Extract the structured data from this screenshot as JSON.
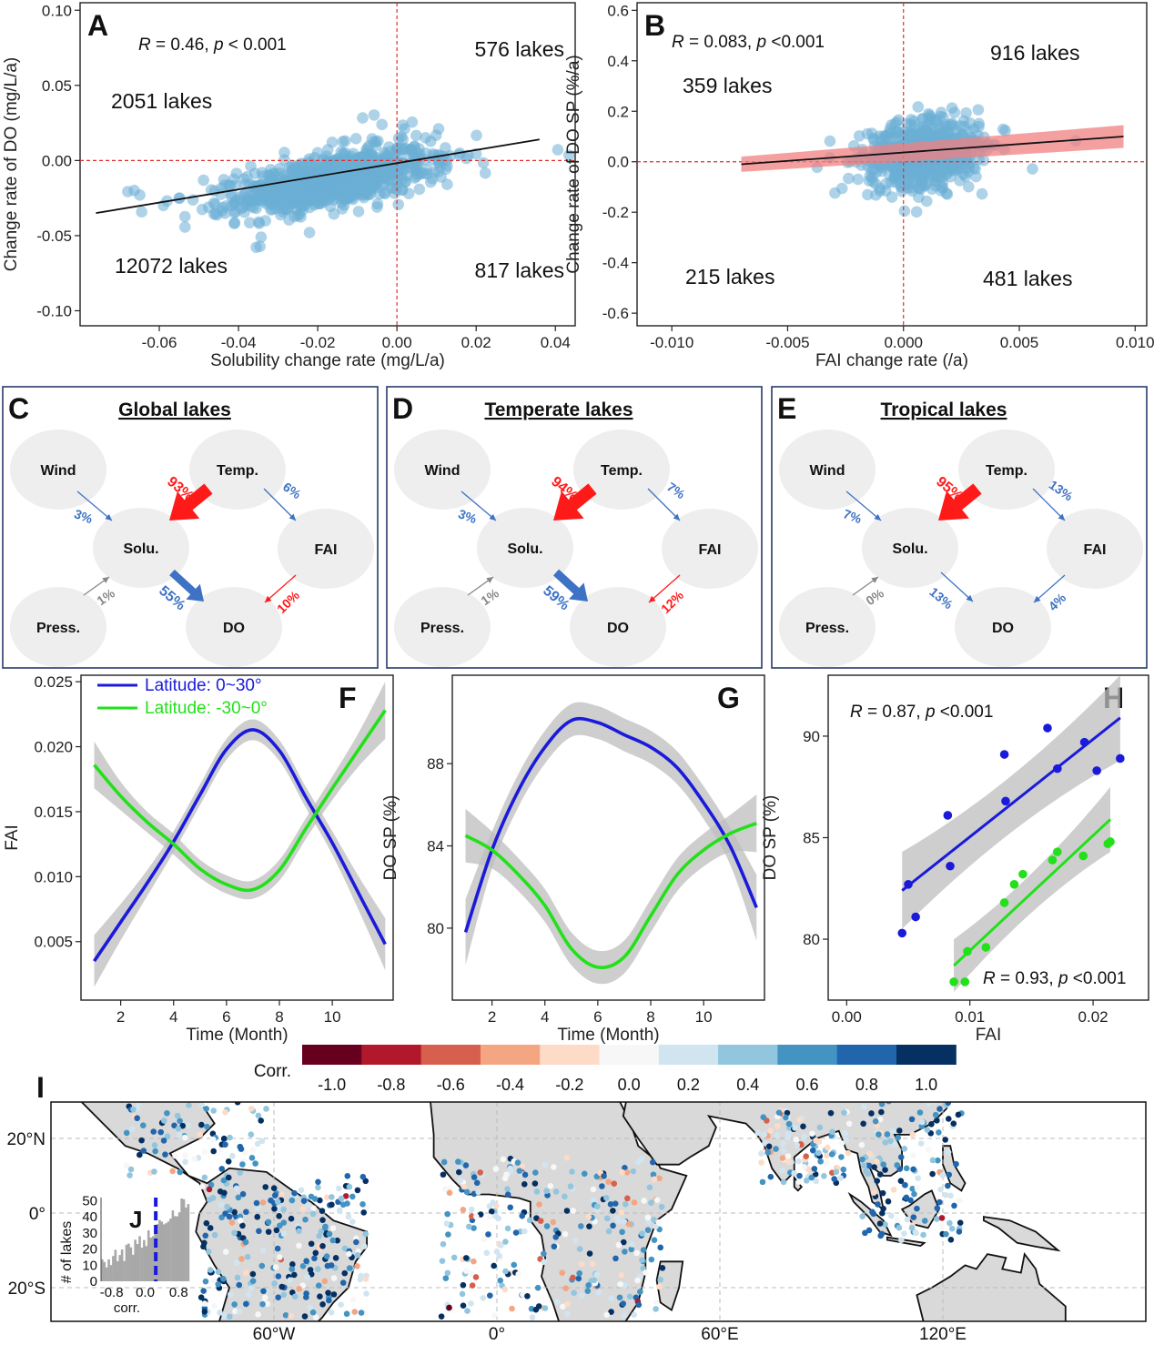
{
  "colors": {
    "scatter_blue": "#6baed6",
    "fit_red_band": "#f08080",
    "refline_red": "#e0302b",
    "north_blue": "#1a1adb",
    "south_green": "#22e01a",
    "ci_gray": "#bdbdbd",
    "arrow_red": "#ff1a1a",
    "arrow_blue": "#3e72c4",
    "arrow_gray": "#888888",
    "node_fill": "#eeeeee",
    "land_gray": "#d9d9d9"
  },
  "chart_data": [
    {
      "id": "A",
      "type": "scatter",
      "letter": "A",
      "xlabel": "Solubility change rate (mg/L/a)",
      "ylabel": "Change rate of DO (mg/L/a)",
      "xlim": [
        -0.08,
        0.045
      ],
      "ylim": [
        -0.11,
        0.105
      ],
      "xticks": [
        -0.06,
        -0.04,
        -0.02,
        0.0,
        0.02,
        0.04
      ],
      "xticklabels": [
        "-0.06",
        "-0.04",
        "-0.02",
        "0.00",
        "0.02",
        "0.04"
      ],
      "yticks": [
        -0.1,
        -0.05,
        0.0,
        0.05,
        0.1
      ],
      "yticklabels": [
        "-0.10",
        "-0.05",
        "0.00",
        "0.05",
        "0.10"
      ],
      "stat": {
        "R": "0.46",
        "p": "< 0.001"
      },
      "quadrant_labels": [
        "576 lakes",
        "2051 lakes",
        "12072 lakes",
        "817 lakes"
      ],
      "fit_line": {
        "x": [
          -0.076,
          0.036
        ],
        "y": [
          -0.035,
          0.014
        ]
      },
      "cloud": {
        "x_mean": -0.016,
        "x_sd": 0.012,
        "y_mean": -0.013,
        "y_sd": 0.015,
        "slope": 0.46,
        "n": 1000
      }
    },
    {
      "id": "B",
      "type": "scatter",
      "letter": "B",
      "xlabel": "FAI change rate (/a)",
      "ylabel": "Change rate of DO SP (%/a)",
      "xlim": [
        -0.0115,
        0.0105
      ],
      "ylim": [
        -0.65,
        0.63
      ],
      "xticks": [
        -0.01,
        -0.005,
        0.0,
        0.005,
        0.01
      ],
      "xticklabels": [
        "-0.010",
        "-0.005",
        "0.000",
        "0.005",
        "0.010"
      ],
      "yticks": [
        -0.6,
        -0.4,
        -0.2,
        0.0,
        0.2,
        0.4,
        0.6
      ],
      "yticklabels": [
        "-0.6",
        "-0.4",
        "-0.2",
        "0.0",
        "0.2",
        "0.4",
        "0.6"
      ],
      "stat": {
        "R": "0.083",
        "p": "<0.001"
      },
      "quadrant_labels": [
        "916 lakes",
        "359 lakes",
        "215 lakes",
        "481 lakes"
      ],
      "fit_line": {
        "x": [
          -0.007,
          0.0095
        ],
        "y": [
          -0.01,
          0.1
        ]
      },
      "cloud": {
        "x_mean": 0.0009,
        "x_sd": 0.0012,
        "y_mean": 0.03,
        "y_sd": 0.11,
        "slope": 0.083,
        "n": 700
      }
    },
    {
      "id": "F",
      "type": "line",
      "letter": "F",
      "xlabel": "Time (Month)",
      "ylabel": "FAI",
      "xlim": [
        0.5,
        12.3
      ],
      "ylim": [
        0.0005,
        0.0255
      ],
      "xticks": [
        2,
        4,
        6,
        8,
        10
      ],
      "xticklabels": [
        "2",
        "4",
        "6",
        "8",
        "10"
      ],
      "yticks": [
        0.005,
        0.01,
        0.015,
        0.02,
        0.025
      ],
      "yticklabels": [
        "0.005",
        "0.010",
        "0.015",
        "0.020",
        "0.025"
      ],
      "legend": [
        "Latitude: 0~30°",
        "Latitude: -30~0°"
      ],
      "series": [
        {
          "name": "Latitude: 0~30°",
          "color": "north_blue",
          "x": [
            1,
            2,
            3,
            4,
            5,
            6,
            7,
            8,
            9,
            10,
            11,
            12
          ],
          "y": [
            0.0035,
            0.0065,
            0.0095,
            0.0127,
            0.0163,
            0.0198,
            0.0213,
            0.0197,
            0.0161,
            0.0126,
            0.0087,
            0.0048
          ],
          "ci": [
            0.002,
            0.0014,
            0.001,
            0.0008,
            0.0008,
            0.0008,
            0.0008,
            0.0008,
            0.0008,
            0.0009,
            0.0013,
            0.002
          ]
        },
        {
          "name": "Latitude: -30~0°",
          "color": "south_green",
          "x": [
            1,
            2,
            3,
            4,
            5,
            6,
            7,
            8,
            9,
            10,
            11,
            12
          ],
          "y": [
            0.0186,
            0.0162,
            0.0142,
            0.0125,
            0.0106,
            0.0094,
            0.009,
            0.0105,
            0.0137,
            0.0168,
            0.0198,
            0.0228
          ],
          "ci": [
            0.0018,
            0.0011,
            0.0008,
            0.0008,
            0.0007,
            0.0007,
            0.0007,
            0.0008,
            0.0008,
            0.0009,
            0.0013,
            0.0022
          ]
        }
      ]
    },
    {
      "id": "G",
      "type": "line",
      "letter": "G",
      "xlabel": "Time (Month)",
      "ylabel": "DO SP (%)",
      "xlim": [
        0.5,
        12.3
      ],
      "ylim": [
        76.5,
        92.3
      ],
      "xticks": [
        2,
        4,
        6,
        8,
        10
      ],
      "xticklabels": [
        "2",
        "4",
        "6",
        "8",
        "10"
      ],
      "yticks": [
        80,
        84,
        88
      ],
      "yticklabels": [
        "80",
        "84",
        "88"
      ],
      "series": [
        {
          "name": "",
          "color": "north_blue",
          "x": [
            1,
            2,
            3,
            4,
            5,
            6,
            7,
            8,
            9,
            10,
            11,
            12
          ],
          "y": [
            79.8,
            83.8,
            86.7,
            88.8,
            90.1,
            90.0,
            89.4,
            88.8,
            87.8,
            86.1,
            84.0,
            81.0
          ],
          "ci": [
            1.6,
            0.9,
            0.8,
            0.8,
            0.8,
            0.8,
            0.8,
            0.8,
            0.8,
            0.8,
            0.9,
            1.6
          ]
        },
        {
          "name": "",
          "color": "south_green",
          "x": [
            1,
            2,
            3,
            4,
            5,
            6,
            7,
            8,
            9,
            10,
            11,
            12
          ],
          "y": [
            84.5,
            83.8,
            82.6,
            81.1,
            79.0,
            78.1,
            78.6,
            80.6,
            82.6,
            83.8,
            84.6,
            85.1
          ],
          "ci": [
            1.3,
            0.9,
            0.8,
            0.8,
            0.8,
            0.8,
            0.8,
            0.8,
            0.8,
            0.8,
            0.9,
            1.4
          ]
        }
      ]
    },
    {
      "id": "H",
      "type": "scatter",
      "letter": "H",
      "xlabel": "FAI",
      "ylabel": "DO SP (%)",
      "xlim": [
        -0.0015,
        0.0245
      ],
      "ylim": [
        77.0,
        93.0
      ],
      "xticks": [
        0.0,
        0.01,
        0.02
      ],
      "xticklabels": [
        "0.00",
        "0.01",
        "0.02"
      ],
      "yticks": [
        80,
        85,
        90
      ],
      "yticklabels": [
        "80",
        "85",
        "90"
      ],
      "stat_top": {
        "R": "0.87",
        "p": "<0.001"
      },
      "stat_bottom": {
        "R": "0.93",
        "p": "<0.001"
      },
      "series": [
        {
          "name": "",
          "color": "north_blue",
          "x": [
            0.0045,
            0.005,
            0.0056,
            0.0082,
            0.0084,
            0.0128,
            0.0129,
            0.0163,
            0.0171,
            0.0193,
            0.0203,
            0.0222
          ],
          "y": [
            80.3,
            82.7,
            81.1,
            86.1,
            83.6,
            89.1,
            86.8,
            90.4,
            88.4,
            89.7,
            88.3,
            88.9
          ],
          "fit": {
            "x": [
              0.0045,
              0.0222
            ],
            "y": [
              82.4,
              90.9
            ]
          }
        },
        {
          "name": "",
          "color": "south_green",
          "x": [
            0.0087,
            0.0096,
            0.0098,
            0.0113,
            0.0128,
            0.0136,
            0.0143,
            0.0167,
            0.0171,
            0.0192,
            0.0212,
            0.0214
          ],
          "y": [
            77.9,
            77.9,
            79.4,
            79.6,
            81.8,
            82.7,
            83.2,
            83.9,
            84.3,
            84.1,
            84.7,
            84.8
          ],
          "fit": {
            "x": [
              0.0087,
              0.0214
            ],
            "y": [
              78.7,
              85.9
            ]
          }
        }
      ]
    }
  ],
  "path_diagrams": [
    {
      "letter": "C",
      "title": "Global lakes",
      "nodes": {
        "wind": "Wind",
        "temp": "Temp.",
        "solu": "Solu.",
        "fai": "FAI",
        "press": "Press.",
        "do": "DO"
      },
      "arrows": {
        "wind_solu": "3%",
        "temp_solu": "93%",
        "temp_fai": "6%",
        "press_solu": "1%",
        "solu_do": "55%",
        "fai_do": "10%"
      },
      "colors": {
        "wind_solu": "blue",
        "temp_solu": "red",
        "temp_fai": "blue",
        "press_solu": "gray",
        "solu_do": "blue",
        "fai_do": "red"
      }
    },
    {
      "letter": "D",
      "title": "Temperate lakes",
      "nodes": {
        "wind": "Wind",
        "temp": "Temp.",
        "solu": "Solu.",
        "fai": "FAI",
        "press": "Press.",
        "do": "DO"
      },
      "arrows": {
        "wind_solu": "3%",
        "temp_solu": "94%",
        "temp_fai": "7%",
        "press_solu": "1%",
        "solu_do": "59%",
        "fai_do": "12%"
      },
      "colors": {
        "wind_solu": "blue",
        "temp_solu": "red",
        "temp_fai": "blue",
        "press_solu": "gray",
        "solu_do": "blue",
        "fai_do": "red"
      }
    },
    {
      "letter": "E",
      "title": "Tropical lakes",
      "nodes": {
        "wind": "Wind",
        "temp": "Temp.",
        "solu": "Solu.",
        "fai": "FAI",
        "press": "Press.",
        "do": "DO"
      },
      "arrows": {
        "wind_solu": "7%",
        "temp_solu": "95%",
        "temp_fai": "13%",
        "press_solu": "0%",
        "solu_do": "13%",
        "fai_do": "4%"
      },
      "colors": {
        "wind_solu": "blue",
        "temp_solu": "red",
        "temp_fai": "blue",
        "press_solu": "gray",
        "solu_do": "blue",
        "fai_do": "blue"
      }
    }
  ],
  "colorbar": {
    "title": "Corr.",
    "colors": [
      "#67001f",
      "#b2182b",
      "#d6604d",
      "#f4a582",
      "#fddbc7",
      "#f7f7f7",
      "#d1e5f0",
      "#92c5de",
      "#4393c3",
      "#2166ac",
      "#053061"
    ],
    "labels": [
      "-1.0",
      "-0.8",
      "-0.6",
      "-0.4",
      "-0.2",
      "0.0",
      "0.2",
      "0.4",
      "0.6",
      "0.8",
      "1.0"
    ]
  },
  "map": {
    "letter": "I",
    "lat_labels": [
      "20°N",
      "0°",
      "20°S"
    ],
    "lon_labels": [
      "60°W",
      "0°",
      "60°E",
      "120°E"
    ],
    "dot_count": 900
  },
  "inset": {
    "letter": "J",
    "ylabel": "# of lakes",
    "xlabel": "corr.",
    "yticklabels": [
      "0",
      "10",
      "20",
      "30",
      "40",
      "50"
    ],
    "xticklabels": [
      "-0.8",
      "0.0",
      "0.8"
    ]
  }
}
